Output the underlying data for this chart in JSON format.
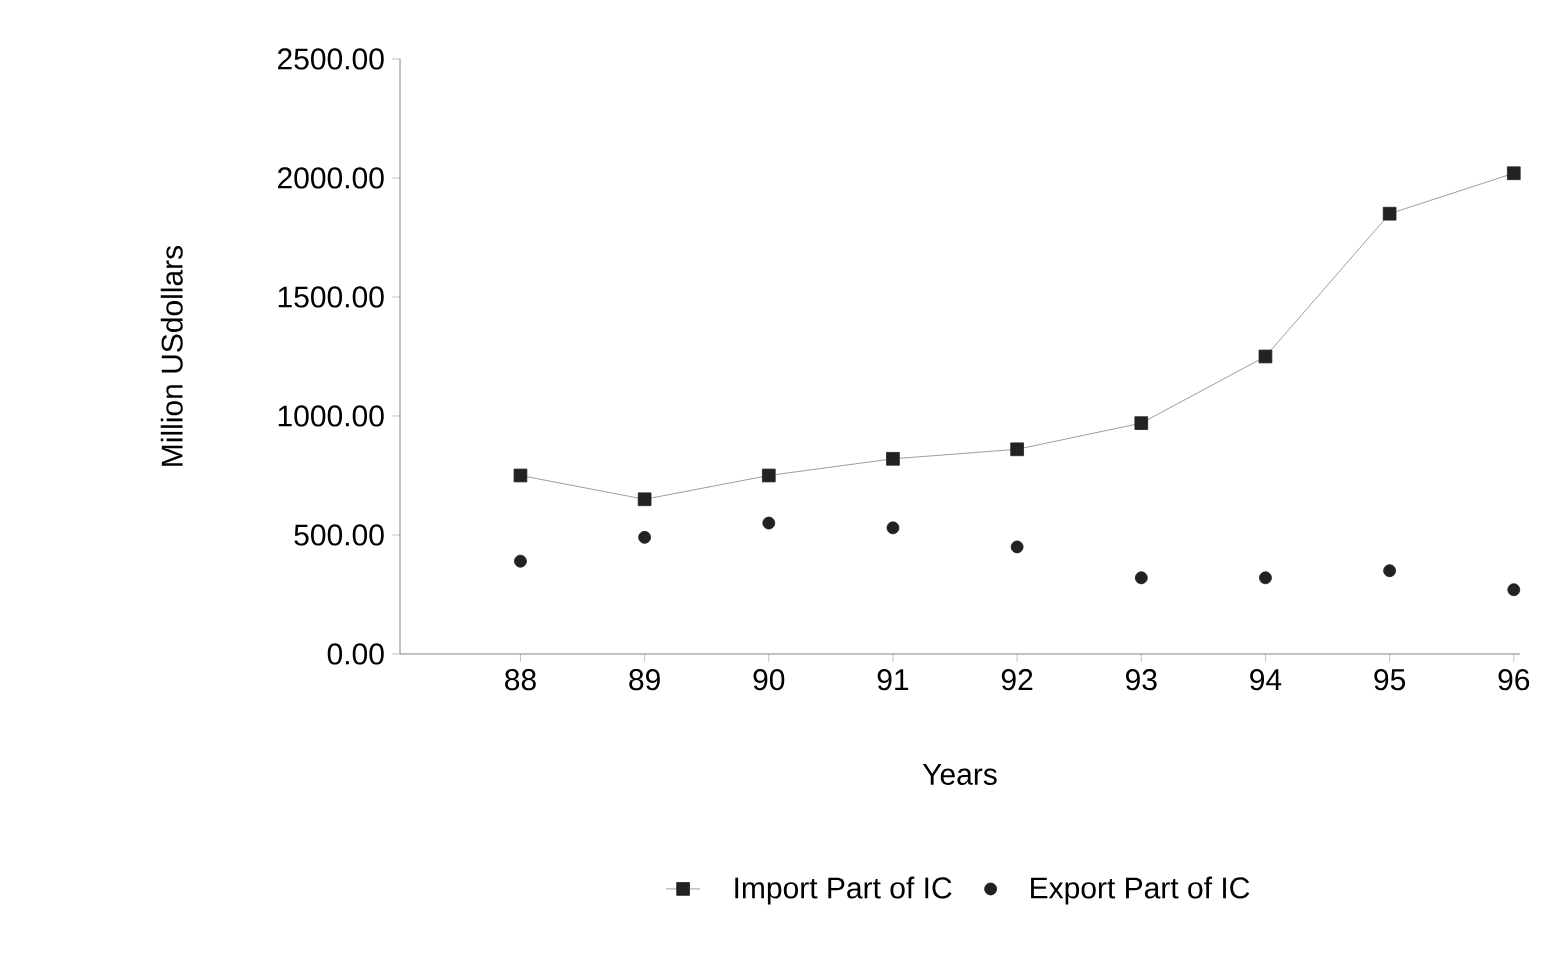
{
  "chart_data": {
    "type": "line",
    "xlabel": "Years",
    "ylabel": "Million USdollars",
    "categories": [
      "88",
      "89",
      "90",
      "91",
      "92",
      "93",
      "94",
      "95",
      "96"
    ],
    "series": [
      {
        "name": "Import Part of IC",
        "marker": "square",
        "color": "#222222",
        "values": [
          750,
          650,
          750,
          820,
          860,
          970,
          1250,
          1850,
          2020
        ]
      },
      {
        "name": "Export Part of IC",
        "type": "scatter",
        "marker": "circle",
        "color": "#222222",
        "values": [
          390,
          490,
          550,
          530,
          450,
          320,
          320,
          350,
          270
        ]
      }
    ],
    "ylim": [
      0,
      2500
    ],
    "yticks": [
      {
        "value": 0,
        "label": "0.00"
      },
      {
        "value": 500,
        "label": "500.00"
      },
      {
        "value": 1000,
        "label": "1000.00"
      },
      {
        "value": 1500,
        "label": "1500.00"
      },
      {
        "value": 2000,
        "label": "2000.00"
      },
      {
        "value": 2500,
        "label": "2500.00"
      }
    ],
    "grid": false,
    "legend": "bottom"
  }
}
